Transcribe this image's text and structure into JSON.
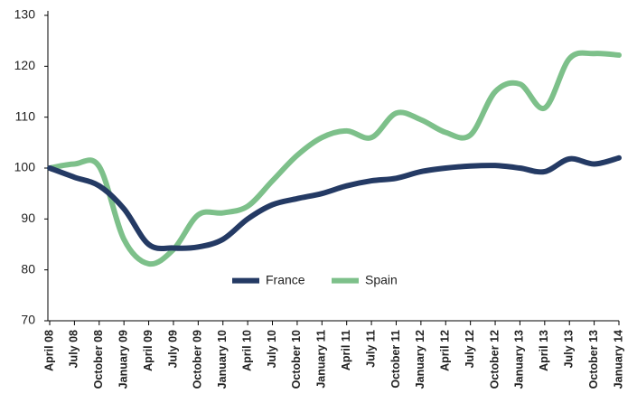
{
  "chart_data": {
    "type": "line",
    "categories": [
      "April 08",
      "July 08",
      "October 08",
      "January 09",
      "April 09",
      "July 09",
      "October 09",
      "January 10",
      "April 10",
      "July 10",
      "October 10",
      "January 11",
      "April 11",
      "July 11",
      "October 11",
      "January 12",
      "April 12",
      "July 12",
      "October 12",
      "January 13",
      "April 13",
      "July 13",
      "October 13",
      "January 14"
    ],
    "series": [
      {
        "name": "France",
        "color": "#243a64",
        "values": [
          100,
          98.2,
          96.5,
          92,
          85,
          84.3,
          84.5,
          86,
          90,
          92.8,
          94,
          95,
          96.5,
          97.5,
          98,
          99.3,
          100,
          100.4,
          100.5,
          100,
          99.3,
          101.8,
          100.8,
          102
        ]
      },
      {
        "name": "Spain",
        "color": "#7dc08a",
        "values": [
          100,
          100.8,
          100.3,
          86,
          81.2,
          84,
          90.8,
          91.2,
          92.5,
          97.5,
          102.5,
          106,
          107.3,
          106,
          110.8,
          109.5,
          107,
          106.5,
          115,
          116.5,
          111.8,
          121.5,
          122.5,
          122.2
        ]
      }
    ],
    "ylim": [
      70,
      130
    ],
    "yticks": [
      70,
      80,
      90,
      100,
      110,
      120,
      130
    ],
    "grid": false,
    "legend_position": "lower center"
  }
}
